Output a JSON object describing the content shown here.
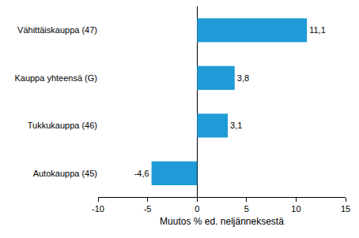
{
  "chart_data": {
    "type": "bar",
    "orientation": "horizontal",
    "x_label": "Muutos % ed. neljänneksestä",
    "categories": [
      "Vähittäiskauppa (47)",
      "Kauppa yhteensä (G)",
      "Tukkukauppa (46)",
      "Autokauppa (45)"
    ],
    "values": [
      11.1,
      3.8,
      3.1,
      -4.6
    ],
    "value_labels": [
      "11,1",
      "3,8",
      "3,1",
      "-4,6"
    ],
    "data_labels": true,
    "color": "#1f9bd7",
    "xlim": [
      -10,
      15
    ],
    "xticks": [
      -10,
      -5,
      0,
      5,
      10,
      15
    ],
    "grid": false
  }
}
